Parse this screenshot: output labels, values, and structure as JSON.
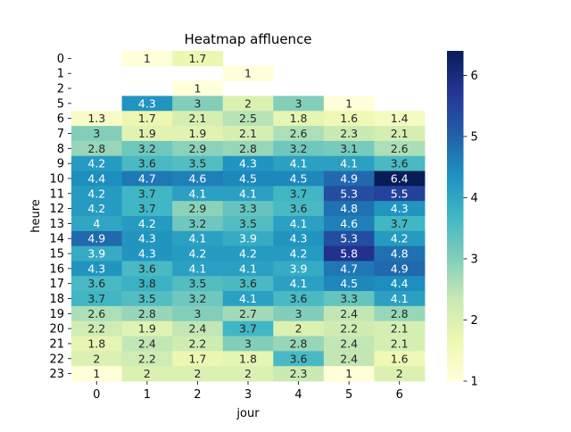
{
  "chart_data": {
    "type": "heatmap",
    "title": "Heatmap affluence",
    "xlabel": "jour",
    "ylabel": "heure",
    "x": [
      "0",
      "1",
      "2",
      "3",
      "4",
      "5",
      "6"
    ],
    "y": [
      "0",
      "1",
      "2",
      "5",
      "6",
      "7",
      "8",
      "9",
      "10",
      "11",
      "12",
      "13",
      "14",
      "15",
      "16",
      "17",
      "18",
      "19",
      "20",
      "21",
      "22",
      "23"
    ],
    "values": [
      [
        null,
        1,
        1.7,
        null,
        null,
        null,
        null
      ],
      [
        null,
        null,
        null,
        1,
        null,
        null,
        null
      ],
      [
        null,
        null,
        1,
        null,
        null,
        null,
        null
      ],
      [
        null,
        4.3,
        3,
        2,
        3,
        1,
        null
      ],
      [
        1.3,
        1.7,
        2.1,
        2.5,
        1.8,
        1.6,
        1.4
      ],
      [
        3,
        1.9,
        1.9,
        2.1,
        2.6,
        2.3,
        2.1
      ],
      [
        2.8,
        3.2,
        2.9,
        2.8,
        3.2,
        3.1,
        2.6
      ],
      [
        4.2,
        3.6,
        3.5,
        4.3,
        4.1,
        4.1,
        3.6
      ],
      [
        4.4,
        4.7,
        4.6,
        4.5,
        4.5,
        4.9,
        6.4
      ],
      [
        4.2,
        3.7,
        4.1,
        4.1,
        3.7,
        5.3,
        5.5
      ],
      [
        4.2,
        3.7,
        2.9,
        3.3,
        3.6,
        4.8,
        4.3
      ],
      [
        4,
        4.2,
        3.2,
        3.5,
        4.1,
        4.6,
        3.7
      ],
      [
        4.9,
        4.3,
        4.1,
        3.9,
        4.3,
        5.3,
        4.2
      ],
      [
        3.9,
        4.3,
        4.2,
        4.2,
        4.2,
        5.8,
        4.8
      ],
      [
        4.3,
        3.6,
        4.1,
        4.1,
        3.9,
        4.7,
        4.9
      ],
      [
        3.6,
        3.8,
        3.5,
        3.6,
        4.1,
        4.5,
        4.4
      ],
      [
        3.7,
        3.5,
        3.2,
        4.1,
        3.6,
        3.3,
        4.1
      ],
      [
        2.6,
        2.8,
        3,
        2.7,
        3,
        2.4,
        2.8
      ],
      [
        2.2,
        1.9,
        2.4,
        3.7,
        2,
        2.2,
        2.1
      ],
      [
        1.8,
        2.4,
        2.2,
        3,
        2.8,
        2.4,
        2.1
      ],
      [
        2,
        2.2,
        1.7,
        1.8,
        3.6,
        2.4,
        1.6
      ],
      [
        1,
        2,
        2,
        2,
        2.3,
        1,
        2
      ]
    ],
    "colorbar": {
      "min": 1,
      "max": 6.4,
      "ticks": [
        "1",
        "2",
        "3",
        "4",
        "5",
        "6"
      ],
      "colormap": "YlGnBu"
    },
    "annotations": true,
    "grid": false
  }
}
